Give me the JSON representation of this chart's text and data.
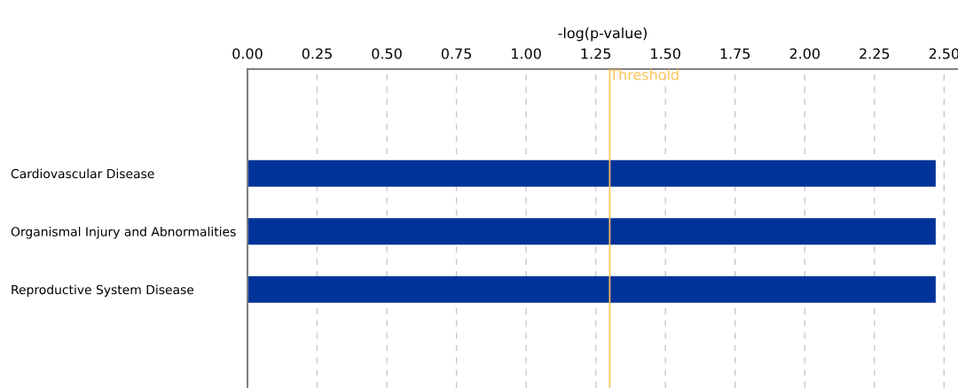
{
  "chart_data": {
    "type": "bar",
    "orientation": "horizontal",
    "xlabel": "-log(p-value)",
    "categories": [
      "Cardiovascular Disease",
      "Organismal Injury and Abnormalities",
      "Reproductive System Disease"
    ],
    "values": [
      2.47,
      2.47,
      2.47
    ],
    "color": "#003399",
    "xlim": [
      0,
      2.55
    ],
    "xticks": [
      {
        "value": 0,
        "label": "0.00"
      },
      {
        "value": 0.25,
        "label": "0.25"
      },
      {
        "value": 0.5,
        "label": "0.50"
      },
      {
        "value": 0.75,
        "label": "0.75"
      },
      {
        "value": 1.0,
        "label": "1.00"
      },
      {
        "value": 1.25,
        "label": "1.25"
      },
      {
        "value": 1.5,
        "label": "1.50"
      },
      {
        "value": 1.75,
        "label": "1.75"
      },
      {
        "value": 2.0,
        "label": "2.00"
      },
      {
        "value": 2.25,
        "label": "2.25"
      },
      {
        "value": 2.5,
        "label": "2.50"
      }
    ],
    "grid": "x",
    "ref_lines": [
      {
        "axis": "x",
        "value": 1.3,
        "label": "Threshold",
        "color": "#ffc35a"
      }
    ]
  }
}
